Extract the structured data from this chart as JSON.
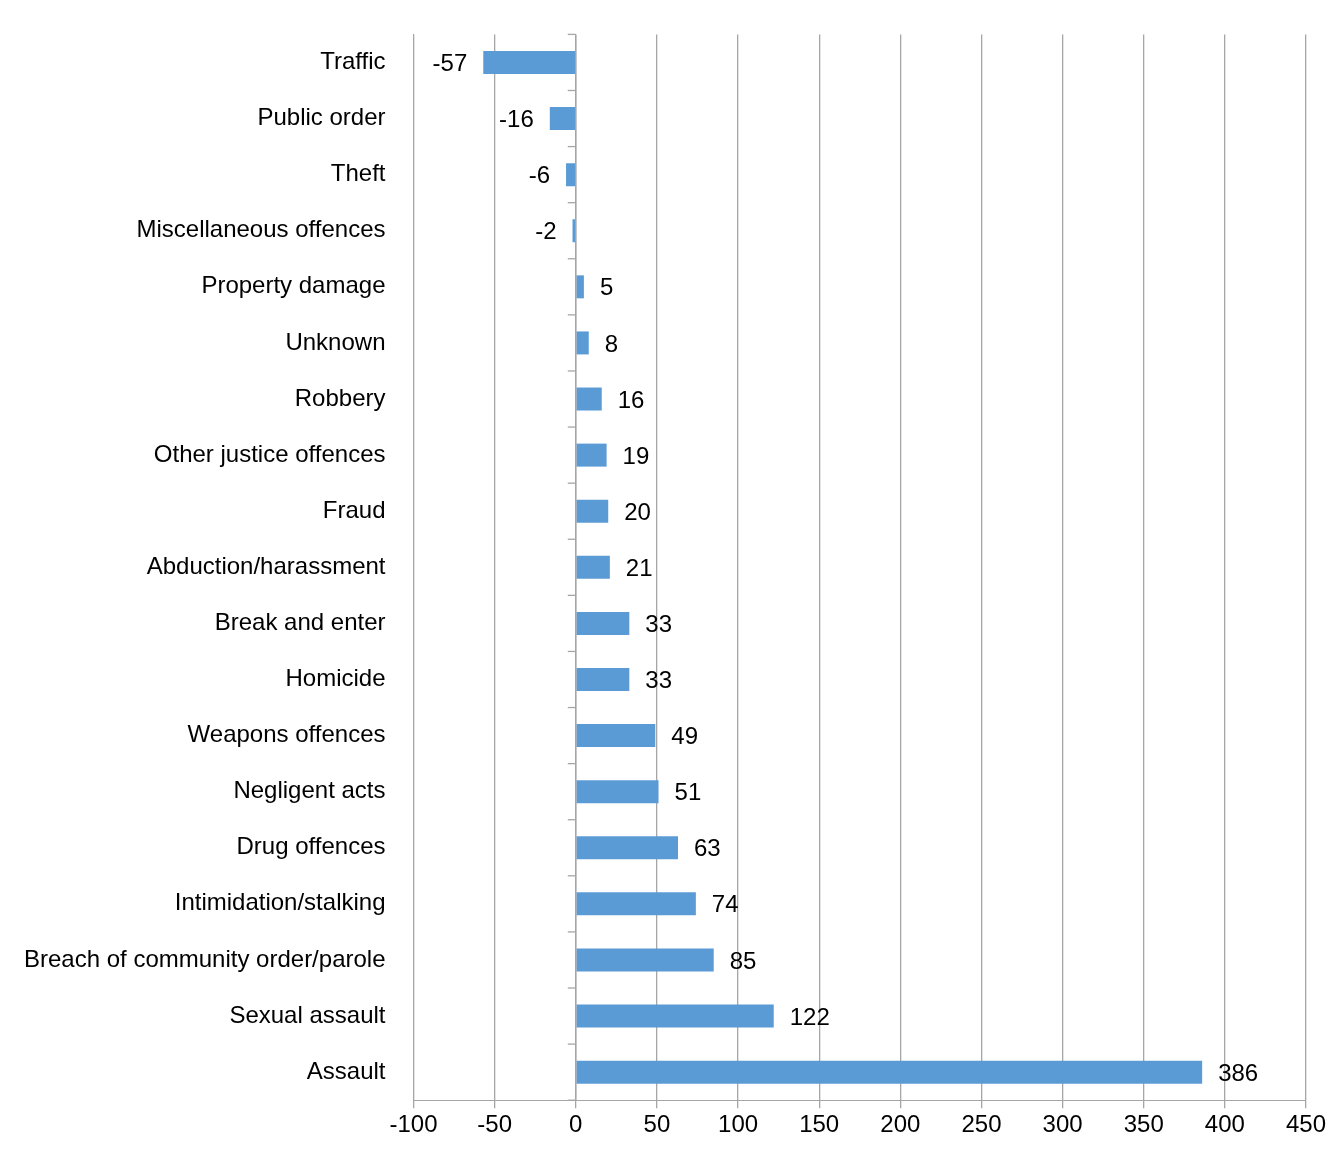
{
  "chart_data": {
    "type": "bar",
    "orientation": "horizontal",
    "categories": [
      "Traffic",
      "Public order",
      "Theft",
      "Miscellaneous offences",
      "Property damage",
      "Unknown",
      "Robbery",
      "Other justice offences",
      "Fraud",
      "Abduction/harassment",
      "Break and enter",
      "Homicide",
      "Weapons offences",
      "Negligent acts",
      "Drug offences",
      "Intimidation/stalking",
      "Breach of community order/parole",
      "Sexual assault",
      "Assault"
    ],
    "values": [
      -57,
      -16,
      -6,
      -2,
      5,
      8,
      16,
      19,
      20,
      21,
      33,
      33,
      49,
      51,
      63,
      74,
      85,
      122,
      386
    ],
    "color": "#5b9bd5",
    "xlim": [
      -100,
      450
    ],
    "xticks": [
      -100,
      -50,
      0,
      50,
      100,
      150,
      200,
      250,
      300,
      350,
      400,
      450
    ],
    "grid": "x",
    "data_labels": true
  }
}
